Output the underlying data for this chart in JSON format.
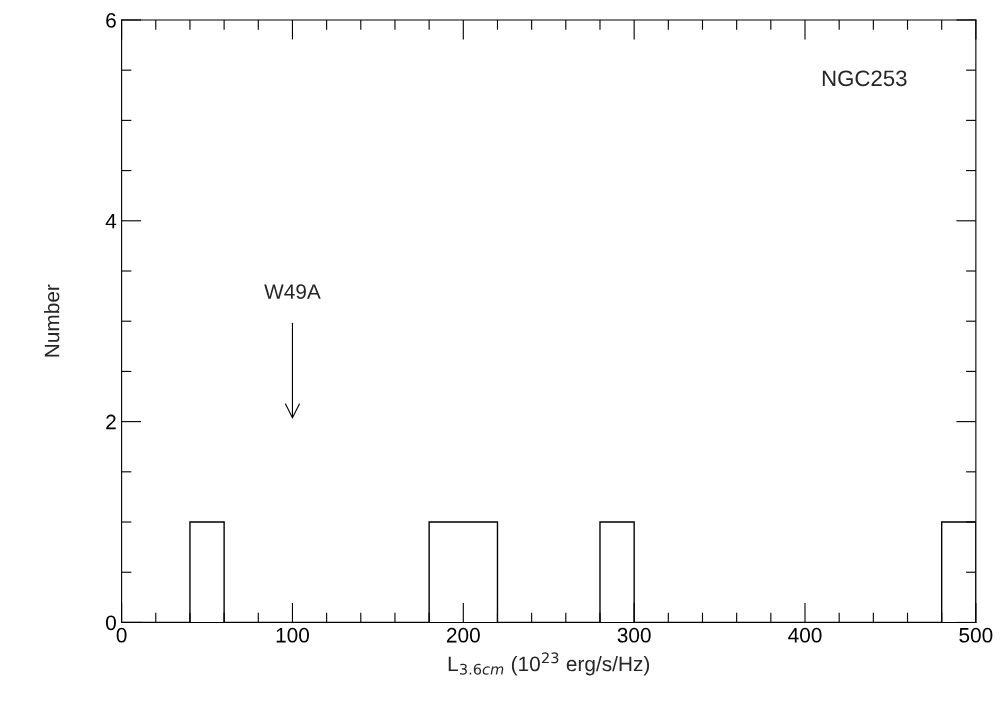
{
  "chart_data": {
    "type": "histogram",
    "xlabel": "L$_{3.6cm}$ (10$^{23}$ erg/s/Hz)",
    "ylabel": "Number",
    "bins": [
      0,
      20,
      40,
      60,
      80,
      100,
      120,
      140,
      160,
      180,
      200,
      220,
      240,
      260,
      280,
      300,
      320,
      340,
      360,
      380,
      400,
      420,
      440,
      460,
      480,
      500
    ],
    "values": [
      0,
      0,
      1,
      0,
      0,
      0,
      0,
      0,
      0,
      1,
      1,
      0,
      0,
      0,
      1,
      0,
      0,
      0,
      0,
      0,
      0,
      0,
      0,
      0,
      1
    ],
    "color": "#000000",
    "xlim": [
      0,
      500
    ],
    "ylim": [
      0,
      6
    ],
    "xticks": [
      0,
      {
        "value": 20,
        "label": null
      },
      {
        "value": 40,
        "label": null
      },
      {
        "value": 60,
        "label": null
      },
      {
        "value": 80,
        "label": null
      },
      100,
      {
        "value": 120,
        "label": null
      },
      {
        "value": 140,
        "label": null
      },
      {
        "value": 160,
        "label": null
      },
      {
        "value": 180,
        "label": null
      },
      200,
      {
        "value": 220,
        "label": null
      },
      {
        "value": 240,
        "label": null
      },
      {
        "value": 260,
        "label": null
      },
      {
        "value": 280,
        "label": null
      },
      300,
      {
        "value": 320,
        "label": null
      },
      {
        "value": 340,
        "label": null
      },
      {
        "value": 360,
        "label": null
      },
      {
        "value": 380,
        "label": null
      },
      400,
      {
        "value": 420,
        "label": null
      },
      {
        "value": 440,
        "label": null
      },
      {
        "value": 460,
        "label": null
      },
      {
        "value": 480,
        "label": null
      },
      500
    ],
    "yticks": [
      0,
      {
        "value": 0.5,
        "label": null
      },
      {
        "value": 1,
        "label": null
      },
      {
        "value": 1.5,
        "label": null
      },
      2,
      {
        "value": 2.5,
        "label": null
      },
      {
        "value": 3,
        "label": null
      },
      {
        "value": 3.5,
        "label": null
      },
      4,
      {
        "value": 4.5,
        "label": null
      },
      {
        "value": 5,
        "label": null
      },
      {
        "value": 5.5,
        "label": null
      },
      6
    ],
    "grid": false,
    "legend": false,
    "annotations": [
      "W49A",
      "NGC253"
    ]
  }
}
